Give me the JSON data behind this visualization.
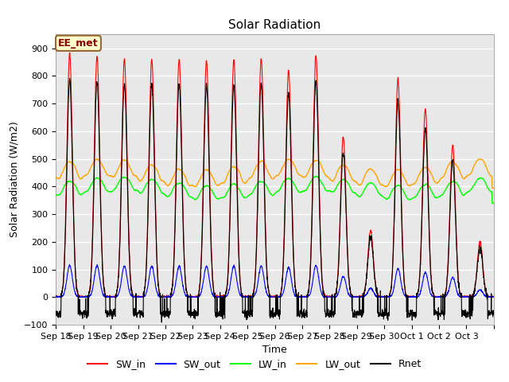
{
  "title": "Solar Radiation",
  "ylabel": "Solar Radiation (W/m2)",
  "xlabel": "Time",
  "ylim": [
    -100,
    950
  ],
  "yticks": [
    -100,
    0,
    100,
    200,
    300,
    400,
    500,
    600,
    700,
    800,
    900
  ],
  "fig_bg_color": "#e8e8e8",
  "plot_bg_color": "#e8e8e8",
  "legend_bg_color": "white",
  "grid_color": "white",
  "annotation_text": "EE_met",
  "annotation_bg": "#ffffcc",
  "annotation_border": "#996633",
  "n_days": 16,
  "title_fontsize": 11,
  "tick_fontsize": 8,
  "label_fontsize": 9,
  "sw_peaks": [
    880,
    870,
    860,
    860,
    860,
    855,
    860,
    860,
    820,
    875,
    580,
    240,
    790,
    680,
    550,
    200
  ],
  "tick_labels": [
    "Sep 18",
    "Sep 19",
    "Sep 20",
    "Sep 21",
    "Sep 22",
    "Sep 23",
    "Sep 24",
    "Sep 25",
    "Sep 26",
    "Sep 27",
    "Sep 28",
    "Sep 29",
    "Sep 30",
    "Oct 1",
    "Oct 2",
    "Oct 3",
    ""
  ]
}
